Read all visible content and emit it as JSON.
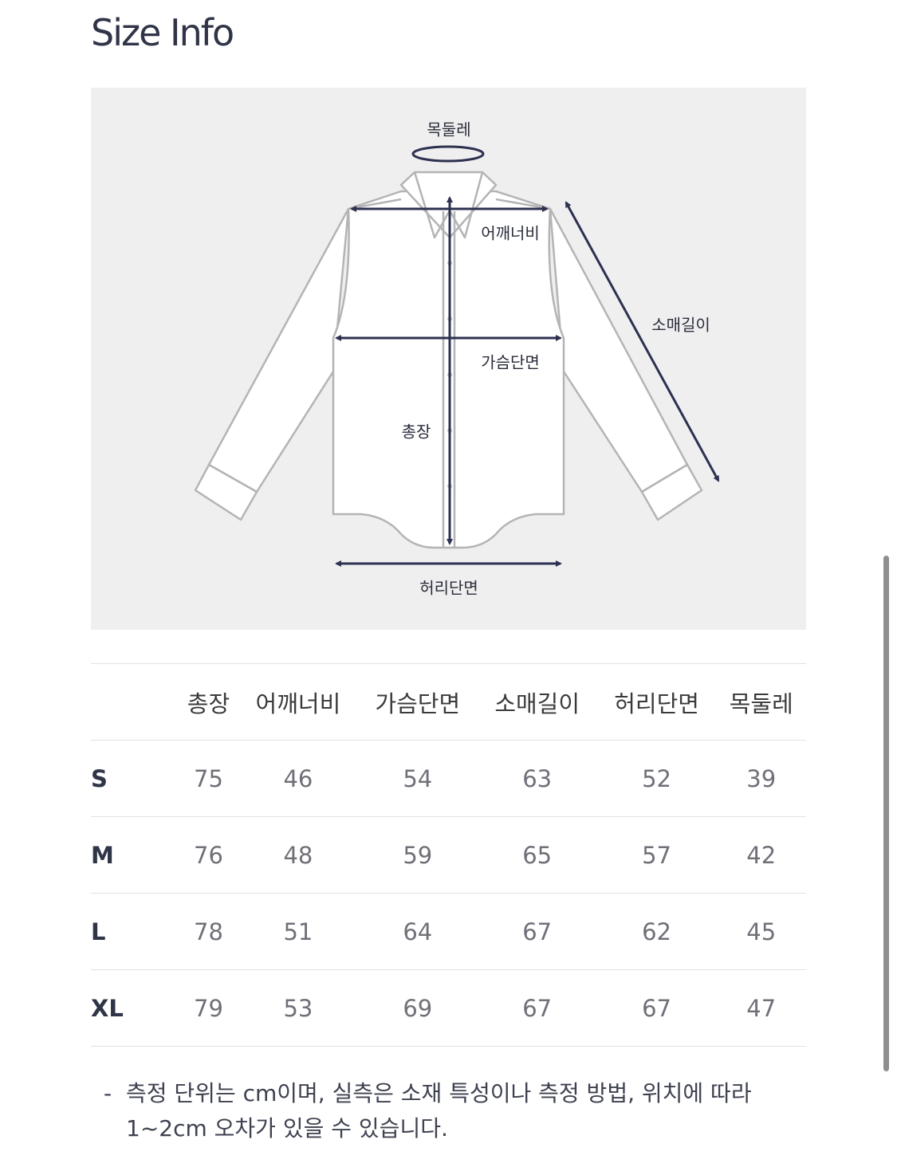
{
  "title": "Size Info",
  "diagram": {
    "labels": {
      "neck": "목둘레",
      "shoulder": "어깨너비",
      "sleeve": "소매길이",
      "chest": "가슴단면",
      "length": "총장",
      "waist": "허리단면"
    },
    "colors": {
      "background": "#f0eff0",
      "outline": "#b4b4b6",
      "arrow": "#2c3150"
    }
  },
  "table": {
    "headers": [
      "총장",
      "어깨너비",
      "가슴단면",
      "소매길이",
      "허리단면",
      "목둘레"
    ],
    "rows": [
      {
        "size": "S",
        "values": [
          "75",
          "46",
          "54",
          "63",
          "52",
          "39"
        ]
      },
      {
        "size": "M",
        "values": [
          "76",
          "48",
          "59",
          "65",
          "57",
          "42"
        ]
      },
      {
        "size": "L",
        "values": [
          "78",
          "51",
          "64",
          "67",
          "62",
          "45"
        ]
      },
      {
        "size": "XL",
        "values": [
          "79",
          "53",
          "69",
          "67",
          "67",
          "47"
        ]
      }
    ]
  },
  "note": {
    "bullet": "-",
    "text": "측정 단위는 cm이며, 실측은 소재 특성이나 측정 방법, 위치에 따라 1~2cm 오차가 있을 수 있습니다."
  }
}
